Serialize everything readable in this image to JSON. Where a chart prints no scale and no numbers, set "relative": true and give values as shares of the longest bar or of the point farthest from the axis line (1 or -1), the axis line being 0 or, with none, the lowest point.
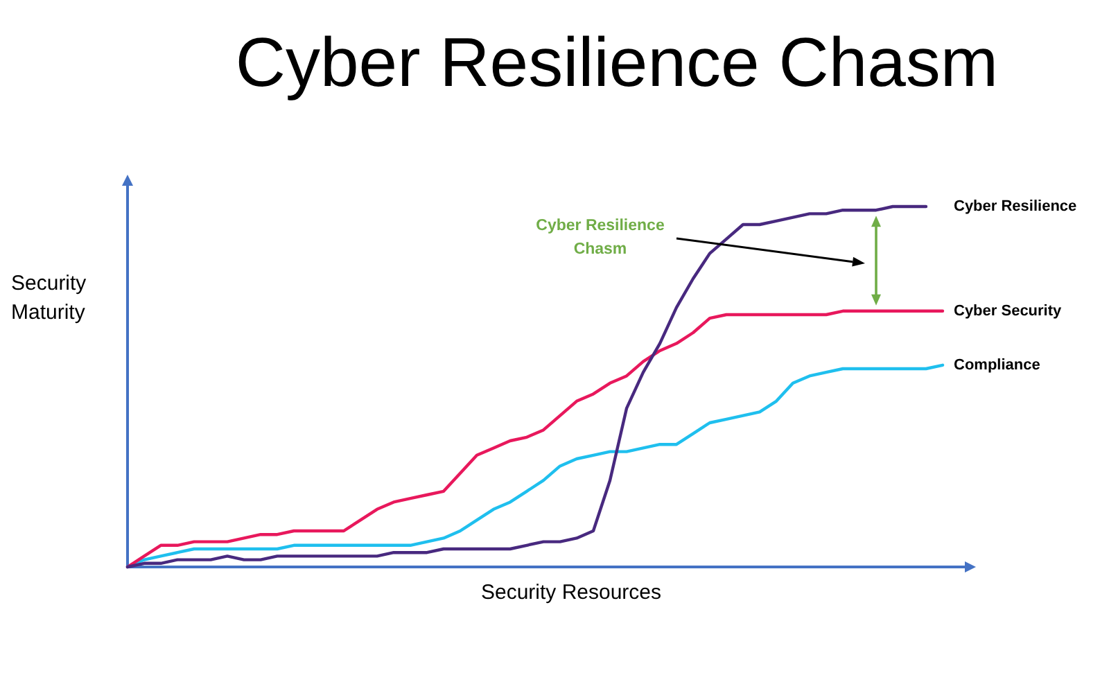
{
  "chart_data": {
    "type": "line",
    "title": "Cyber Resilience Chasm",
    "xlabel": "Security Resources",
    "ylabel": "Security Maturity",
    "annotations": [
      "Cyber Resilience Chasm"
    ],
    "relative": true,
    "categories": [
      null,
      null,
      null,
      null,
      null,
      null,
      null,
      null,
      null,
      null,
      null,
      null,
      null,
      null,
      null,
      null,
      null,
      null,
      null,
      null,
      null,
      null,
      null,
      null,
      null,
      null,
      null,
      null,
      null,
      null,
      null,
      null,
      null,
      null,
      null,
      null,
      null,
      null,
      null,
      null,
      null,
      null,
      null,
      null,
      null,
      null,
      null,
      null,
      null,
      null
    ],
    "series": [
      {
        "name": "Cyber Resilience",
        "color": "#48297f",
        "values": [
          0,
          0.01,
          0.01,
          0.02,
          0.02,
          0.02,
          0.03,
          0.02,
          0.02,
          0.03,
          0.03,
          0.03,
          0.03,
          0.03,
          0.03,
          0.03,
          0.04,
          0.04,
          0.04,
          0.05,
          0.05,
          0.05,
          0.05,
          0.05,
          0.06,
          0.07,
          0.07,
          0.08,
          0.1,
          0.24,
          0.44,
          0.54,
          0.62,
          0.72,
          0.8,
          0.87,
          0.91,
          0.95,
          0.95,
          0.96,
          0.97,
          0.98,
          0.98,
          0.99,
          0.99,
          0.99,
          1,
          1,
          1,
          null
        ]
      },
      {
        "name": "Cyber Security",
        "color": "#e8185c",
        "values": [
          0,
          0.03,
          0.06,
          0.06,
          0.07,
          0.07,
          0.07,
          0.08,
          0.09,
          0.09,
          0.1,
          0.1,
          0.1,
          0.1,
          0.13,
          0.16,
          0.18,
          0.19,
          0.2,
          0.21,
          0.26,
          0.31,
          0.33,
          0.35,
          0.36,
          0.38,
          0.42,
          0.46,
          0.48,
          0.51,
          0.53,
          0.57,
          0.6,
          0.62,
          0.65,
          0.69,
          0.7,
          0.7,
          0.7,
          0.7,
          0.7,
          0.7,
          0.7,
          0.71,
          0.71,
          0.71,
          0.71,
          0.71,
          0.71,
          0.71
        ]
      },
      {
        "name": "Compliance",
        "color": "#1fbfee",
        "values": [
          0,
          0.02,
          0.03,
          0.04,
          0.05,
          0.05,
          0.05,
          0.05,
          0.05,
          0.05,
          0.06,
          0.06,
          0.06,
          0.06,
          0.06,
          0.06,
          0.06,
          0.06,
          0.07,
          0.08,
          0.1,
          0.13,
          0.16,
          0.18,
          0.21,
          0.24,
          0.28,
          0.3,
          0.31,
          0.32,
          0.32,
          0.33,
          0.34,
          0.34,
          0.37,
          0.4,
          0.41,
          0.42,
          0.43,
          0.46,
          0.51,
          0.53,
          0.54,
          0.55,
          0.55,
          0.55,
          0.55,
          0.55,
          0.55,
          0.56
        ]
      }
    ]
  }
}
